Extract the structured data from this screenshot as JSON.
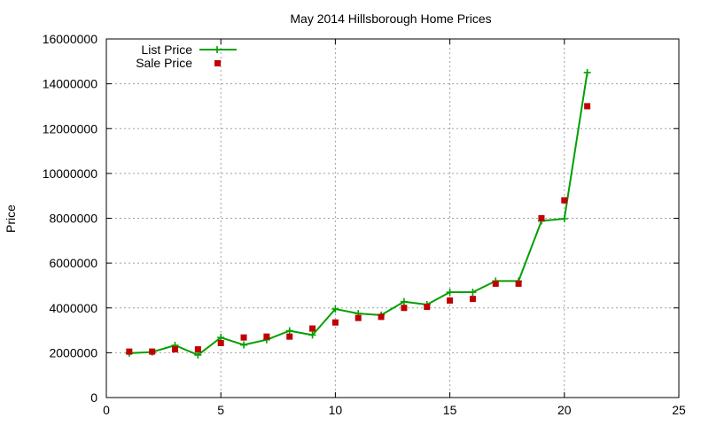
{
  "chart_data": {
    "type": "line",
    "title": "May 2014 Hillsborough Home Prices",
    "xlabel": "",
    "ylabel": "Price",
    "xlim": [
      0,
      25
    ],
    "ylim": [
      0,
      16000000
    ],
    "x_ticks": [
      "0",
      "5",
      "10",
      "15",
      "20",
      "25"
    ],
    "y_ticks": [
      "0",
      "2000000",
      "4000000",
      "6000000",
      "8000000",
      "10000000",
      "12000000",
      "14000000",
      "16000000"
    ],
    "grid": true,
    "legend_position": "top-left",
    "x": [
      1,
      2,
      3,
      4,
      5,
      6,
      7,
      8,
      9,
      10,
      11,
      12,
      13,
      14,
      15,
      16,
      17,
      18,
      19,
      20,
      21
    ],
    "series": [
      {
        "name": "List Price",
        "style": "line-plus",
        "color": "#00a000",
        "values": [
          1980000,
          2030000,
          2330000,
          1900000,
          2680000,
          2350000,
          2580000,
          2980000,
          2790000,
          3950000,
          3750000,
          3680000,
          4280000,
          4150000,
          4700000,
          4700000,
          5200000,
          5200000,
          7880000,
          7980000,
          14500000
        ]
      },
      {
        "name": "Sale Price",
        "style": "square",
        "color": "#c00000",
        "values": [
          2050000,
          2050000,
          2150000,
          2150000,
          2430000,
          2680000,
          2720000,
          2720000,
          3080000,
          3350000,
          3550000,
          3600000,
          4000000,
          4050000,
          4330000,
          4400000,
          5080000,
          5080000,
          8000000,
          8800000,
          13000000
        ]
      }
    ]
  }
}
